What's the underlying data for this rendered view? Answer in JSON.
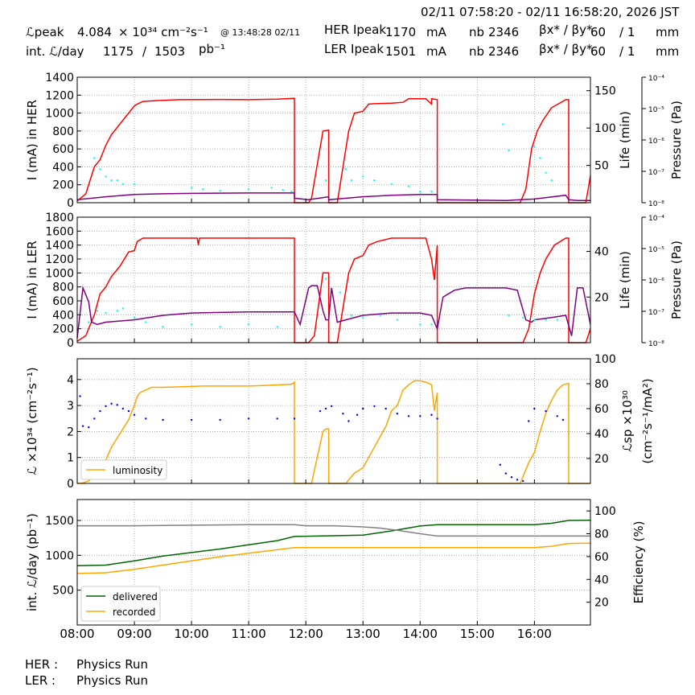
{
  "header": {
    "time_range": "02/11 07:58:20 - 02/11 16:58:20, 2026 JST",
    "lpeak_label": "ℒpeak",
    "lpeak_value": "4.084",
    "lpeak_unit": "× 10³⁴ cm⁻²s⁻¹",
    "lpeak_time": "@ 13:48:28 02/11",
    "intl_label": "int. ℒ/day",
    "intl_value": "1175",
    "intl_sep": "/",
    "intl_value2": "1503",
    "intl_unit": "pb⁻¹",
    "her_label": "HER Ipeak",
    "her_value": "1170",
    "her_unit": "mA",
    "her_nb_label": "nb",
    "her_nb": "2346",
    "her_beta_label": "βx* / βy*",
    "her_beta_x": "60",
    "her_beta_y": "/ 1",
    "her_beta_unit": "mm",
    "ler_label": "LER Ipeak",
    "ler_value": "1501",
    "ler_unit": "mA",
    "ler_nb_label": "nb",
    "ler_nb": "2346",
    "ler_beta_label": "βx* / βy*",
    "ler_beta_x": "60",
    "ler_beta_y": "/ 1",
    "ler_beta_unit": "mm"
  },
  "status": {
    "her_label": "HER :",
    "her_value": "Physics Run",
    "ler_label": "LER :",
    "ler_value": "Physics Run"
  },
  "colors": {
    "current": "#ff0000",
    "life": "#800080",
    "pressure": "#00ffff",
    "luminosity": "#ffa500",
    "specific": "#0000ff",
    "delivered": "#006400",
    "recorded": "#ffa500",
    "efficiency": "#808080"
  },
  "chart_data": [
    {
      "type": "line",
      "panel": "her",
      "ylabel": "I (mA) in HER",
      "ylabel_right": "Life (min)",
      "ylabel_right2": "Pressure (Pa)",
      "ylim": [
        0,
        1400
      ],
      "yticks": [
        0,
        200,
        400,
        600,
        800,
        1000,
        1200,
        1400
      ],
      "y2lim": [
        0,
        168
      ],
      "y2ticks": [
        50,
        100,
        150
      ],
      "y3ticks": [
        "10⁻⁸",
        "10⁻⁷",
        "10⁻⁶",
        "10⁻⁵",
        "10⁻⁴"
      ],
      "series": [
        {
          "role": "current",
          "x": [
            8.0,
            8.15,
            8.3,
            8.4,
            8.5,
            8.6,
            8.75,
            8.9,
            9.0,
            9.05,
            9.15,
            9.4,
            9.8,
            10.5,
            11.0,
            11.5,
            11.8,
            11.8,
            12.05,
            12.1,
            12.3,
            12.4,
            12.4,
            12.55,
            12.65,
            12.75,
            12.85,
            13.0,
            13.1,
            13.2,
            13.5,
            13.7,
            13.8,
            14.0,
            14.1,
            14.2,
            14.2,
            14.3,
            14.3,
            15.0,
            15.5,
            15.75,
            15.85,
            15.95,
            16.05,
            16.15,
            16.3,
            16.55,
            16.6,
            16.6,
            16.9,
            16.98
          ],
          "y": [
            20,
            100,
            400,
            480,
            640,
            760,
            880,
            1000,
            1080,
            1100,
            1130,
            1140,
            1150,
            1152,
            1150,
            1155,
            1165,
            0,
            0,
            50,
            800,
            810,
            0,
            0,
            400,
            800,
            1000,
            1020,
            1100,
            1105,
            1110,
            1120,
            1160,
            1160,
            1160,
            1100,
            1160,
            1150,
            0,
            0,
            0,
            0,
            150,
            600,
            800,
            920,
            1060,
            1150,
            1150,
            0,
            0,
            300
          ]
        },
        {
          "role": "life",
          "x": [
            8.0,
            8.5,
            9.0,
            9.5,
            10.0,
            11.0,
            11.8,
            11.8,
            12.05,
            12.4,
            12.4,
            13.0,
            13.5,
            14.0,
            14.3,
            14.3,
            15.5,
            16.0,
            16.55,
            16.6,
            16.75,
            16.98
          ],
          "y": [
            4,
            8,
            11,
            12,
            12.5,
            13,
            13,
            6,
            4,
            8,
            4,
            8,
            10,
            11,
            11,
            4,
            3,
            5,
            10,
            4,
            3,
            3
          ]
        },
        {
          "role": "pressure",
          "x": [
            8.3,
            8.4,
            8.5,
            8.6,
            8.7,
            8.8,
            9.0,
            10.0,
            10.2,
            10.5,
            11.0,
            11.4,
            11.6,
            11.75,
            12.35,
            12.7,
            12.8,
            13.0,
            13.2,
            13.5,
            13.8,
            14.0,
            14.2,
            15.45,
            15.55,
            16.0,
            16.1,
            16.2,
            16.3
          ],
          "y": [
            60,
            45,
            35,
            30,
            30,
            25,
            25,
            20,
            18,
            16,
            18,
            20,
            17,
            15,
            30,
            45,
            30,
            35,
            30,
            25,
            22,
            15,
            15,
            105,
            70,
            75,
            60,
            40,
            30
          ]
        }
      ]
    },
    {
      "type": "line",
      "panel": "ler",
      "ylabel": "I (mA) in LER",
      "ylabel_right": "Life (min)",
      "ylabel_right2": "Pressure (Pa)",
      "ylim": [
        0,
        1800
      ],
      "yticks": [
        0,
        200,
        400,
        600,
        800,
        1000,
        1200,
        1400,
        1600,
        1800
      ],
      "y2lim": [
        0,
        55
      ],
      "y2ticks": [
        20,
        40
      ],
      "y3ticks": [
        "10⁻⁸",
        "10⁻⁷",
        "10⁻⁶",
        "10⁻⁵",
        "10⁻⁴"
      ],
      "series": [
        {
          "role": "current",
          "x": [
            8.0,
            8.15,
            8.3,
            8.4,
            8.5,
            8.6,
            8.75,
            8.9,
            9.0,
            9.05,
            9.15,
            9.3,
            10.0,
            10.1,
            10.12,
            10.14,
            11.0,
            11.8,
            11.8,
            12.05,
            12.15,
            12.3,
            12.4,
            12.4,
            12.55,
            12.65,
            12.75,
            12.85,
            13.0,
            13.1,
            13.25,
            13.5,
            13.7,
            13.9,
            14.1,
            14.2,
            14.25,
            14.3,
            14.3,
            15.0,
            15.5,
            15.8,
            15.9,
            16.0,
            16.1,
            16.2,
            16.35,
            16.55,
            16.6,
            16.6,
            16.9,
            16.98
          ],
          "y": [
            20,
            100,
            400,
            700,
            800,
            950,
            1100,
            1300,
            1320,
            1450,
            1500,
            1500,
            1500,
            1500,
            1400,
            1500,
            1500,
            1500,
            0,
            0,
            100,
            1000,
            1000,
            0,
            0,
            500,
            1000,
            1200,
            1250,
            1400,
            1450,
            1500,
            1500,
            1500,
            1500,
            1200,
            900,
            1400,
            0,
            0,
            0,
            0,
            200,
            700,
            1000,
            1200,
            1400,
            1500,
            1500,
            0,
            0,
            200
          ]
        },
        {
          "role": "life",
          "x": [
            8.0,
            8.1,
            8.2,
            8.25,
            8.35,
            8.5,
            9.0,
            9.5,
            10.0,
            11.0,
            11.8,
            11.9,
            12.05,
            12.1,
            12.2,
            12.3,
            12.35,
            12.4,
            12.45,
            12.55,
            12.7,
            13.0,
            13.5,
            14.0,
            14.2,
            14.3,
            14.4,
            14.6,
            14.8,
            15.0,
            15.5,
            15.7,
            15.85,
            15.95,
            16.0,
            16.3,
            16.55,
            16.65,
            16.75,
            16.85,
            16.98
          ],
          "y": [
            2,
            24,
            18,
            9,
            8,
            9,
            10,
            12,
            13,
            13.5,
            13.5,
            8,
            24,
            25,
            25,
            14,
            10,
            10,
            24,
            9,
            10,
            12,
            13,
            13,
            12,
            6,
            20,
            23,
            24,
            24,
            24,
            23,
            10,
            9,
            10,
            11,
            12,
            3,
            24,
            24,
            8
          ]
        },
        {
          "role": "pressure",
          "x": [
            8.2,
            8.35,
            8.5,
            8.7,
            8.8,
            9.0,
            9.2,
            9.5,
            10.0,
            10.5,
            11.0,
            11.5,
            12.35,
            12.6,
            12.8,
            13.0,
            13.3,
            13.6,
            14.0,
            14.2,
            15.55,
            15.8,
            16.0,
            16.2,
            16.4
          ],
          "y": [
            9,
            14,
            13,
            14,
            15,
            11,
            9,
            7,
            8,
            7,
            8,
            7,
            28,
            22,
            12,
            11,
            12,
            10,
            8,
            8,
            12,
            11,
            10,
            10,
            10
          ]
        }
      ]
    },
    {
      "type": "line",
      "panel": "luminosity",
      "ylabel": "ℒ ×10³⁴ (cm⁻²s⁻¹)",
      "ylabel_right": "ℒsp ×10³⁰",
      "ylabel_right_unit": "(cm⁻²s⁻¹/mA²)",
      "ylim": [
        0,
        4.8
      ],
      "yticks": [
        0,
        1,
        2,
        3,
        4
      ],
      "y2lim": [
        0,
        100
      ],
      "y2ticks": [
        20,
        40,
        60,
        80,
        100
      ],
      "legend": "luminosity",
      "legend_placement": "bottom-left",
      "series": [
        {
          "role": "luminosity",
          "name": "luminosity",
          "x": [
            8.0,
            8.1,
            8.2,
            8.3,
            8.4,
            8.5,
            8.6,
            8.7,
            8.8,
            8.9,
            9.0,
            9.05,
            9.1,
            9.2,
            9.3,
            9.5,
            9.8,
            10.2,
            10.6,
            11.0,
            11.4,
            11.75,
            11.8,
            11.8,
            12.1,
            12.15,
            12.2,
            12.3,
            12.35,
            12.4,
            12.4,
            12.7,
            12.85,
            13.0,
            13.1,
            13.2,
            13.3,
            13.4,
            13.5,
            13.6,
            13.7,
            13.8,
            13.9,
            14.0,
            14.1,
            14.2,
            14.25,
            14.3,
            14.3,
            15.0,
            15.5,
            15.75,
            15.9,
            16.0,
            16.1,
            16.2,
            16.3,
            16.4,
            16.5,
            16.6,
            16.6,
            16.98
          ],
          "y": [
            0,
            0.02,
            0.1,
            0.3,
            0.7,
            0.9,
            1.4,
            1.75,
            2.1,
            2.45,
            3.0,
            3.35,
            3.5,
            3.6,
            3.7,
            3.7,
            3.72,
            3.75,
            3.75,
            3.75,
            3.78,
            3.82,
            3.9,
            0,
            0,
            0.5,
            1.0,
            2.0,
            2.1,
            2.1,
            0,
            0,
            0.4,
            0.6,
            1.0,
            1.4,
            1.8,
            2.2,
            2.8,
            3.0,
            3.6,
            3.8,
            3.95,
            3.95,
            3.9,
            3.8,
            2.8,
            3.5,
            0,
            0,
            0,
            0,
            0.8,
            1.2,
            2.0,
            2.7,
            3.2,
            3.6,
            3.8,
            3.85,
            0,
            0
          ]
        },
        {
          "role": "specific",
          "x": [
            8.05,
            8.1,
            8.2,
            8.3,
            8.4,
            8.5,
            8.6,
            8.7,
            8.8,
            8.9,
            9.0,
            9.2,
            9.5,
            10.0,
            10.5,
            11.0,
            11.5,
            11.8,
            12.25,
            12.35,
            12.45,
            12.65,
            12.75,
            12.9,
            13.0,
            13.2,
            13.4,
            13.6,
            13.8,
            14.0,
            14.2,
            14.3,
            15.4,
            15.5,
            15.6,
            15.7,
            15.8,
            15.9,
            16.0,
            16.2,
            16.4,
            16.5
          ],
          "y": [
            70,
            46,
            45,
            52,
            58,
            62,
            64,
            63,
            60,
            58,
            55,
            52,
            51,
            51,
            51,
            52,
            52,
            52,
            58,
            60,
            62,
            56,
            50,
            55,
            60,
            62,
            60,
            56,
            54,
            54,
            55,
            52,
            15,
            8,
            5,
            3,
            2,
            50,
            60,
            58,
            54,
            51
          ]
        }
      ]
    },
    {
      "type": "line",
      "panel": "integrated",
      "ylabel": "int. ℒ/day (pb⁻¹)",
      "ylabel_right": "Efficiency (%)",
      "ylim": [
        0,
        1800
      ],
      "yticks": [
        500,
        1000,
        1500
      ],
      "y2lim": [
        0,
        110
      ],
      "y2ticks": [
        20,
        40,
        60,
        80,
        100
      ],
      "legend_placement": "bottom-left",
      "series": [
        {
          "role": "delivered",
          "name": "delivered",
          "x": [
            8.0,
            8.5,
            9.0,
            9.5,
            10.0,
            10.5,
            11.0,
            11.5,
            11.8,
            12.4,
            13.0,
            13.5,
            14.0,
            14.3,
            15.0,
            16.0,
            16.3,
            16.6,
            16.98
          ],
          "y": [
            850,
            860,
            920,
            990,
            1040,
            1090,
            1150,
            1210,
            1270,
            1280,
            1290,
            1350,
            1420,
            1440,
            1440,
            1440,
            1460,
            1500,
            1503
          ]
        },
        {
          "role": "recorded",
          "name": "recorded",
          "x": [
            8.0,
            8.5,
            9.0,
            9.5,
            10.0,
            10.5,
            11.0,
            11.5,
            11.8,
            12.4,
            13.0,
            14.0,
            14.3,
            15.0,
            16.0,
            16.3,
            16.6,
            16.98
          ],
          "y": [
            740,
            750,
            800,
            860,
            920,
            980,
            1030,
            1080,
            1110,
            1110,
            1110,
            1110,
            1110,
            1110,
            1110,
            1130,
            1170,
            1175
          ]
        },
        {
          "role": "efficiency",
          "x": [
            8.0,
            9.0,
            10.0,
            11.0,
            11.8,
            12.0,
            12.5,
            13.0,
            13.3,
            13.6,
            14.0,
            14.3,
            15.0,
            16.0,
            16.98
          ],
          "y": [
            87,
            87,
            87.5,
            88,
            88,
            87,
            87,
            86,
            85,
            83,
            80,
            78,
            78,
            78,
            78
          ]
        }
      ]
    }
  ],
  "x_axis": {
    "xlim": [
      8.0,
      16.98
    ],
    "ticks": [
      8,
      9,
      10,
      11,
      12,
      13,
      14,
      15,
      16
    ],
    "labels": [
      "08:00",
      "09:00",
      "10:00",
      "11:00",
      "12:00",
      "13:00",
      "14:00",
      "15:00",
      "16:00"
    ]
  }
}
